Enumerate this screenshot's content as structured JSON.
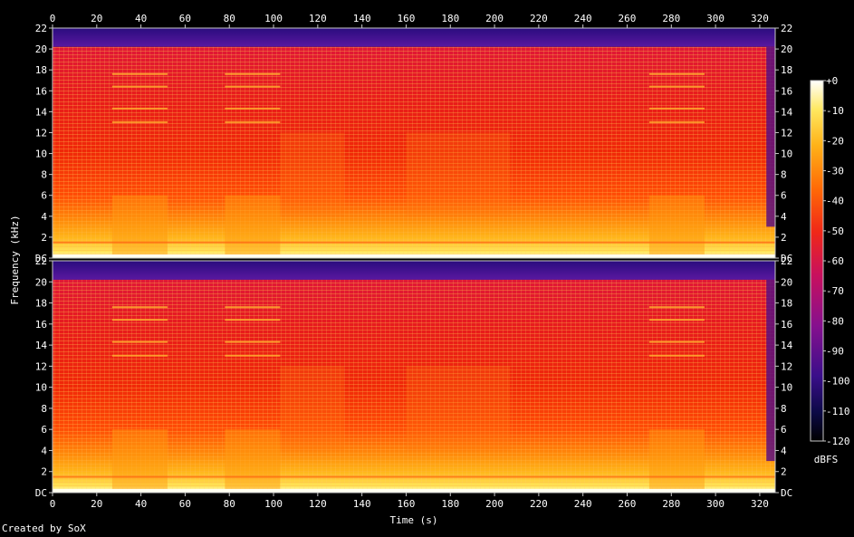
{
  "chart_data": {
    "type": "heatmap",
    "xlabel": "Time (s)",
    "ylabel": "Frequency (kHz)",
    "xlim": [
      0,
      327
    ],
    "ylim": [
      0,
      22
    ],
    "x_ticks": [
      "0",
      "20",
      "40",
      "60",
      "80",
      "100",
      "120",
      "140",
      "160",
      "180",
      "200",
      "220",
      "240",
      "260",
      "280",
      "300",
      "320"
    ],
    "y_ticks": [
      "DC",
      "2",
      "4",
      "6",
      "8",
      "10",
      "12",
      "14",
      "16",
      "18",
      "20",
      "22"
    ],
    "channels": 2,
    "colorbar": {
      "label": "dBFS",
      "range": [
        -120,
        0
      ],
      "ticks": [
        "+0",
        "-10",
        "-20",
        "-30",
        "-40",
        "-50",
        "-60",
        "-70",
        "-80",
        "-90",
        "-100",
        "-110",
        "-120"
      ]
    },
    "lowpass_cutoff_khz": 20.2,
    "sections": [
      {
        "start": 0,
        "end": 27,
        "level": "loud"
      },
      {
        "start": 27,
        "end": 52,
        "level": "bright"
      },
      {
        "start": 52,
        "end": 78,
        "level": "loud"
      },
      {
        "start": 78,
        "end": 103,
        "level": "bright"
      },
      {
        "start": 103,
        "end": 132,
        "level": "dense"
      },
      {
        "start": 132,
        "end": 160,
        "level": "loud"
      },
      {
        "start": 160,
        "end": 207,
        "level": "dense"
      },
      {
        "start": 207,
        "end": 270,
        "level": "loud"
      },
      {
        "start": 270,
        "end": 295,
        "level": "bright"
      },
      {
        "start": 295,
        "end": 323,
        "level": "loud"
      },
      {
        "start": 323,
        "end": 327,
        "level": "fade"
      }
    ]
  },
  "credit": "Created by SoX"
}
